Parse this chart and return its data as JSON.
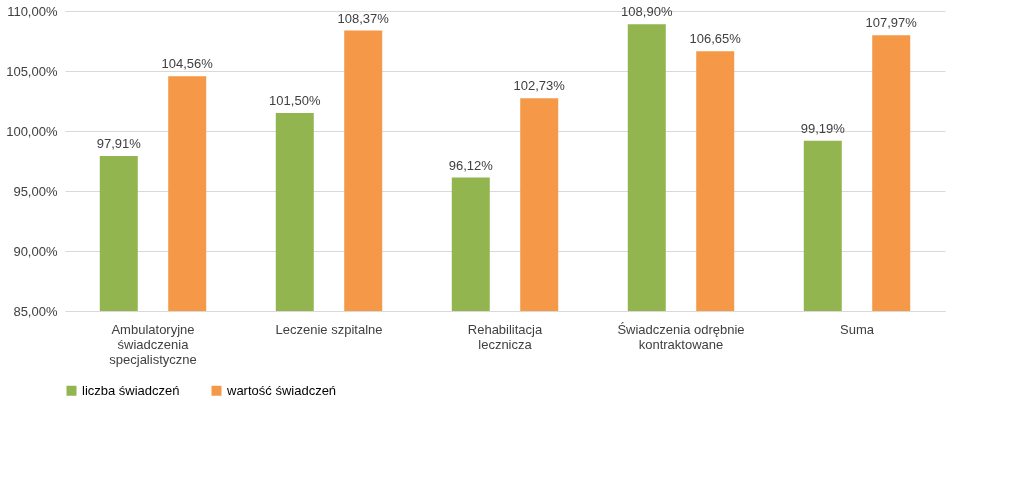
{
  "chart_data": {
    "type": "bar",
    "categories": [
      "Ambulatoryjne świadczenia specjalistyczne",
      "Leczenie szpitalne",
      "Rehabilitacja lecznicza",
      "Świadczenia odrębnie kontraktowane",
      "Suma"
    ],
    "series": [
      {
        "name": "liczba świadczeń",
        "color": "#92b550",
        "values": [
          97.91,
          101.5,
          96.12,
          108.9,
          99.19
        ],
        "value_labels": [
          "97,91%",
          "101,50%",
          "96,12%",
          "108,90%",
          "99,19%"
        ]
      },
      {
        "name": "wartość świadczeń",
        "color": "#f59848",
        "values": [
          104.56,
          108.37,
          102.73,
          106.65,
          107.97
        ],
        "value_labels": [
          "104,56%",
          "108,37%",
          "102,73%",
          "106,65%",
          "107,97%"
        ]
      }
    ],
    "ylim": [
      85,
      110
    ],
    "yticks": [
      {
        "value": 85,
        "label": "85,00%"
      },
      {
        "value": 90,
        "label": "90,00%"
      },
      {
        "value": 95,
        "label": "95,00%"
      },
      {
        "value": 100,
        "label": "100,00%"
      },
      {
        "value": 105,
        "label": "105,00%"
      },
      {
        "value": 110,
        "label": "110,00%"
      }
    ],
    "grid": "y",
    "legend": "bottom"
  }
}
